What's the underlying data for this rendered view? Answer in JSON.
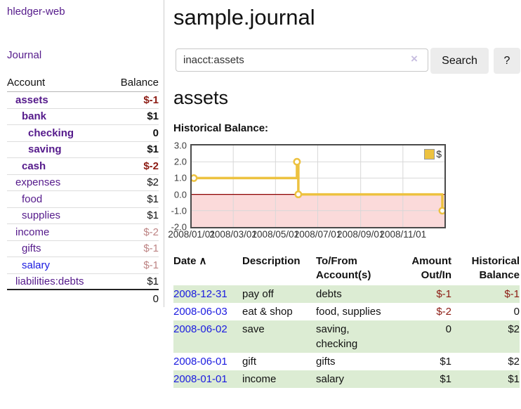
{
  "sidebar": {
    "brand": "hledger-web",
    "journal_link": "Journal",
    "accounts_table": {
      "headers": {
        "account": "Account",
        "balance": "Balance"
      },
      "rows": [
        {
          "name": "assets",
          "depth": 0,
          "bold": true,
          "balance": "$-1",
          "balance_style": "negative"
        },
        {
          "name": "bank",
          "depth": 1,
          "bold": true,
          "balance": "$1",
          "balance_style": "normal"
        },
        {
          "name": "checking",
          "depth": 2,
          "bold": true,
          "balance": "0",
          "balance_style": "normal"
        },
        {
          "name": "saving",
          "depth": 2,
          "bold": true,
          "balance": "$1",
          "balance_style": "normal"
        },
        {
          "name": "cash",
          "depth": 1,
          "bold": true,
          "balance": "$-2",
          "balance_style": "negative"
        },
        {
          "name": "expenses",
          "depth": 0,
          "bold": false,
          "balance": "$2",
          "balance_style": "normal"
        },
        {
          "name": "food",
          "depth": 1,
          "bold": false,
          "balance": "$1",
          "balance_style": "normal"
        },
        {
          "name": "supplies",
          "depth": 1,
          "bold": false,
          "balance": "$1",
          "balance_style": "normal"
        },
        {
          "name": "income",
          "depth": 0,
          "bold": false,
          "balance": "$-2",
          "balance_style": "negative-faded"
        },
        {
          "name": "gifts",
          "depth": 1,
          "bold": false,
          "balance": "$-1",
          "balance_style": "negative-faded"
        },
        {
          "name": "salary",
          "depth": 1,
          "bold": false,
          "link_style": "blue",
          "balance": "$-1",
          "balance_style": "negative-faded"
        },
        {
          "name": "liabilities:debts",
          "depth": 0,
          "bold": false,
          "balance": "$1",
          "balance_style": "normal"
        }
      ],
      "total": "0"
    }
  },
  "header": {
    "title": "sample.journal"
  },
  "search": {
    "value": "inacct:assets",
    "clear_icon": "×",
    "button_label": "Search",
    "help_label": "?"
  },
  "account_page": {
    "heading": "assets",
    "chart_title": "Historical Balance:"
  },
  "chart_data": {
    "type": "line",
    "title": "Historical Balance",
    "legend": "$",
    "legend_position": "top-right",
    "grid": true,
    "ylim": [
      -2,
      3
    ],
    "yticks": [
      "3.0",
      "2.0",
      "1.0",
      "0.0",
      "-1.0",
      "-2.0"
    ],
    "xlim": [
      "2008-01-01",
      "2008-12-31"
    ],
    "xticks": [
      "2008/01/01",
      "2008/03/01",
      "2008/05/01",
      "2008/07/01",
      "2008/09/01",
      "2008/11/01"
    ],
    "series": [
      {
        "name": "$",
        "color": "#edc240",
        "step": true,
        "points": [
          {
            "x": "2008-01-01",
            "y": 1
          },
          {
            "x": "2008-06-01",
            "y": 2
          },
          {
            "x": "2008-06-03",
            "y": 0
          },
          {
            "x": "2008-12-31",
            "y": -1
          }
        ]
      }
    ],
    "negative_region_color": "#fbdada",
    "zero_line_color": "#8b0000",
    "grid_color": "#d8d8d8",
    "border_color": "#4a4a4a"
  },
  "transactions": {
    "headers": {
      "date": "Date",
      "sort_icon": "∧",
      "description": "Description",
      "accounts": "To/From Account(s)",
      "amount": "Amount Out/In",
      "balance": "Historical Balance"
    },
    "rows": [
      {
        "date": "2008-12-31",
        "description": "pay off",
        "accounts": "debts",
        "amount": "$-1",
        "amount_negative": true,
        "balance": "$-1",
        "balance_negative": true,
        "shaded": true
      },
      {
        "date": "2008-06-03",
        "description": "eat & shop",
        "accounts": "food, supplies",
        "amount": "$-2",
        "amount_negative": true,
        "balance": "0",
        "balance_negative": false,
        "shaded": false
      },
      {
        "date": "2008-06-02",
        "description": "save",
        "accounts": "saving, checking",
        "amount": "0",
        "amount_negative": false,
        "balance": "$2",
        "balance_negative": false,
        "shaded": true
      },
      {
        "date": "2008-06-01",
        "description": "gift",
        "accounts": "gifts",
        "amount": "$1",
        "amount_negative": false,
        "balance": "$2",
        "balance_negative": false,
        "shaded": false
      },
      {
        "date": "2008-01-01",
        "description": "income",
        "accounts": "salary",
        "amount": "$1",
        "amount_negative": false,
        "balance": "$1",
        "balance_negative": false,
        "shaded": true
      }
    ]
  }
}
